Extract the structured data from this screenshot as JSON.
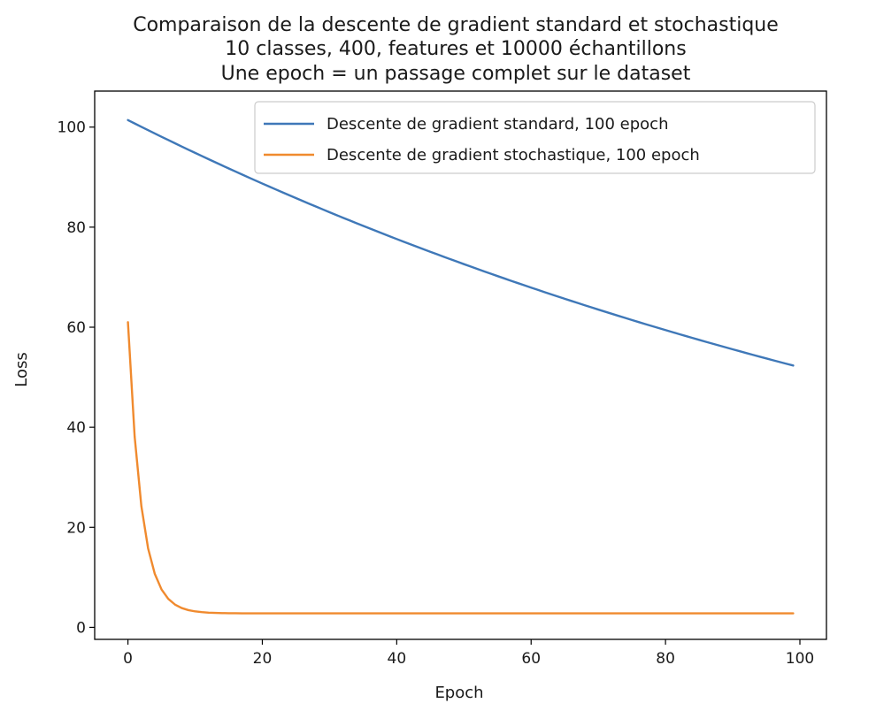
{
  "chart_data": {
    "type": "line",
    "title_lines": [
      "Comparaison de  la descente de gradient standard et stochastique",
      "10 classes, 400, features et 10000 échantillons",
      "Une epoch = un passage complet sur le dataset"
    ],
    "xlabel": "Epoch",
    "ylabel": "Loss",
    "xlim": [
      -4.95,
      103.95
    ],
    "ylim": [
      -2.4,
      107.2
    ],
    "xticks": [
      0,
      20,
      40,
      60,
      80,
      100
    ],
    "yticks": [
      0,
      20,
      40,
      60,
      80,
      100
    ],
    "grid": false,
    "legend_position": "top-right",
    "series": [
      {
        "name": "Descente de gradient standard, 100 epoch",
        "color": "#3f78b8",
        "curve": {
          "kind": "exp",
          "start": 101.4,
          "rate": 0.00668,
          "offset": 0,
          "epochs": 100
        },
        "x": [
          0,
          10,
          20,
          30,
          40,
          50,
          60,
          70,
          80,
          90,
          99
        ],
        "values": [
          101.4,
          95.2,
          89.0,
          83.2,
          78.0,
          73.0,
          68.4,
          64.0,
          60.0,
          56.2,
          52.6
        ]
      },
      {
        "name": "Descente de gradient stochastique, 100 epoch",
        "color": "#f08a2e",
        "curve": {
          "kind": "exp",
          "start": 61.0,
          "rate": 0.5,
          "offset": 2.8,
          "epochs": 100
        },
        "x": [
          0,
          1,
          2,
          3,
          4,
          5,
          6,
          8,
          10,
          20,
          40,
          60,
          80,
          99
        ],
        "values": [
          61.0,
          35.0,
          22.0,
          14.5,
          10.5,
          7.8,
          6.0,
          4.0,
          3.0,
          2.8,
          2.8,
          2.8,
          2.8,
          2.8
        ]
      }
    ]
  }
}
